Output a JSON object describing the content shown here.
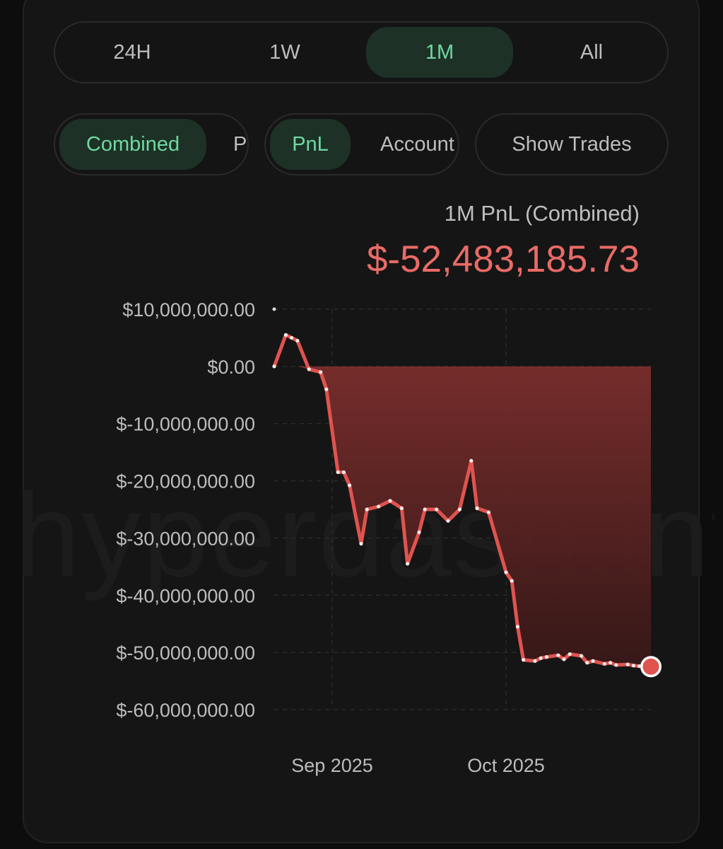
{
  "periods": {
    "items": [
      {
        "label": "24H",
        "active": false
      },
      {
        "label": "1W",
        "active": false
      },
      {
        "label": "1M",
        "active": true
      },
      {
        "label": "All",
        "active": false
      }
    ]
  },
  "mode": {
    "combined_label": "Combined",
    "partial_label": "P"
  },
  "metric": {
    "pnl_label": "PnL",
    "account_label": "Account"
  },
  "trades": {
    "show_trades_label": "Show Trades"
  },
  "summary": {
    "title": "1M PnL (Combined)",
    "value": "$-52,483,185.73"
  },
  "watermark": "hyperdash.info",
  "colors": {
    "accent_green": "#6fd8a0",
    "line_red": "#e0534f",
    "value_red": "#e96b66"
  },
  "chart_data": {
    "type": "area",
    "title": "1M PnL (Combined)",
    "xlabel": "",
    "ylabel": "",
    "ylim": [
      -60000000,
      10000000
    ],
    "yticks": [
      10000000,
      0,
      -10000000,
      -20000000,
      -30000000,
      -40000000,
      -50000000,
      -60000000
    ],
    "ytick_labels": [
      "$10,000,000.00",
      "$0.00",
      "$-10,000,000.00",
      "$-20,000,000.00",
      "$-30,000,000.00",
      "$-40,000,000.00",
      "$-50,000,000.00",
      "$-60,000,000.00"
    ],
    "xlim": [
      "2025-08-22",
      "2025-10-26"
    ],
    "xticks": [
      "2025-09-01",
      "2025-10-01"
    ],
    "xtick_labels": [
      "Sep 2025",
      "Oct 2025"
    ],
    "grid": true,
    "series": [
      {
        "x": [
          "2025-08-22",
          "2025-08-24",
          "2025-08-25",
          "2025-08-26",
          "2025-08-28",
          "2025-08-30",
          "2025-08-31",
          "2025-09-02",
          "2025-09-03",
          "2025-09-04",
          "2025-09-06",
          "2025-09-07",
          "2025-09-09",
          "2025-09-11",
          "2025-09-13",
          "2025-09-14",
          "2025-09-16",
          "2025-09-17",
          "2025-09-19",
          "2025-09-21",
          "2025-09-23",
          "2025-09-25",
          "2025-09-26",
          "2025-09-28",
          "2025-10-01",
          "2025-10-02",
          "2025-10-03",
          "2025-10-04",
          "2025-10-06",
          "2025-10-07",
          "2025-10-08",
          "2025-10-10",
          "2025-10-11",
          "2025-10-12",
          "2025-10-14",
          "2025-10-15",
          "2025-10-16",
          "2025-10-18",
          "2025-10-19",
          "2025-10-20",
          "2025-10-22",
          "2025-10-23",
          "2025-10-24",
          "2025-10-26"
        ],
        "y": [
          0,
          5500000,
          5000000,
          4500000,
          -500000,
          -1000000,
          -4000000,
          -18500000,
          -18500000,
          -20800000,
          -31000000,
          -25000000,
          -24500000,
          -23500000,
          -24800000,
          -34500000,
          -29000000,
          -25000000,
          -25000000,
          -27000000,
          -25000000,
          -16500000,
          -24800000,
          -25500000,
          -36000000,
          -37500000,
          -45500000,
          -51300000,
          -51500000,
          -51000000,
          -50800000,
          -50500000,
          -51200000,
          -50300000,
          -50600000,
          -51800000,
          -51500000,
          -52000000,
          -51800000,
          -52200000,
          -52100000,
          -52300000,
          -52400000,
          -52483185.73
        ]
      }
    ]
  }
}
